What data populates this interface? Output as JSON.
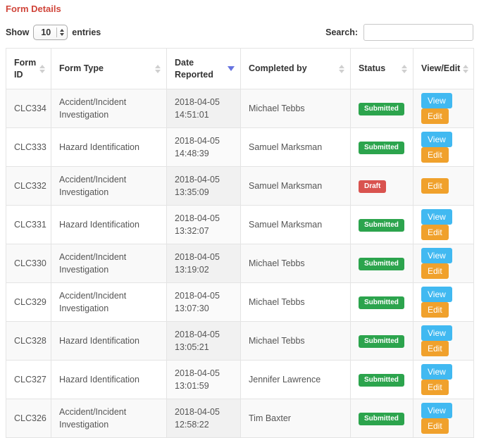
{
  "page": {
    "title": "Form Details"
  },
  "controls": {
    "show_label": "Show",
    "page_length": "10",
    "entries_label": "entries",
    "search_label": "Search:",
    "search_value": ""
  },
  "table": {
    "columns": [
      {
        "label": "Form ID",
        "sort": "none"
      },
      {
        "label": "Form Type",
        "sort": "none"
      },
      {
        "label": "Date Reported",
        "sort": "desc"
      },
      {
        "label": "Completed by",
        "sort": "none"
      },
      {
        "label": "Status",
        "sort": "none"
      },
      {
        "label": "View/Edit",
        "sort": "none"
      }
    ],
    "rows": [
      {
        "form_id": "CLC334",
        "form_type": "Accident/Incident Investigation",
        "date": "2018-04-05",
        "time": "14:51:01",
        "completed_by": "Michael Tebbs",
        "status": "Submitted",
        "actions": [
          "View",
          "Edit"
        ]
      },
      {
        "form_id": "CLC333",
        "form_type": "Hazard Identification",
        "date": "2018-04-05",
        "time": "14:48:39",
        "completed_by": "Samuel Marksman",
        "status": "Submitted",
        "actions": [
          "View",
          "Edit"
        ]
      },
      {
        "form_id": "CLC332",
        "form_type": "Accident/Incident Investigation",
        "date": "2018-04-05",
        "time": "13:35:09",
        "completed_by": "Samuel Marksman",
        "status": "Draft",
        "actions": [
          "Edit"
        ]
      },
      {
        "form_id": "CLC331",
        "form_type": "Hazard Identification",
        "date": "2018-04-05",
        "time": "13:32:07",
        "completed_by": "Samuel Marksman",
        "status": "Submitted",
        "actions": [
          "View",
          "Edit"
        ]
      },
      {
        "form_id": "CLC330",
        "form_type": "Accident/Incident Investigation",
        "date": "2018-04-05",
        "time": "13:19:02",
        "completed_by": "Michael Tebbs",
        "status": "Submitted",
        "actions": [
          "View",
          "Edit"
        ]
      },
      {
        "form_id": "CLC329",
        "form_type": "Accident/Incident Investigation",
        "date": "2018-04-05",
        "time": "13:07:30",
        "completed_by": "Michael Tebbs",
        "status": "Submitted",
        "actions": [
          "View",
          "Edit"
        ]
      },
      {
        "form_id": "CLC328",
        "form_type": "Hazard Identification",
        "date": "2018-04-05",
        "time": "13:05:21",
        "completed_by": "Michael Tebbs",
        "status": "Submitted",
        "actions": [
          "View",
          "Edit"
        ]
      },
      {
        "form_id": "CLC327",
        "form_type": "Hazard Identification",
        "date": "2018-04-05",
        "time": "13:01:59",
        "completed_by": "Jennifer Lawrence",
        "status": "Submitted",
        "actions": [
          "View",
          "Edit"
        ]
      },
      {
        "form_id": "CLC326",
        "form_type": "Accident/Incident Investigation",
        "date": "2018-04-05",
        "time": "12:58:22",
        "completed_by": "Tim Baxter",
        "status": "Submitted",
        "actions": [
          "View",
          "Edit"
        ]
      }
    ]
  },
  "colors": {
    "title": "#d0453a",
    "badge_submitted": "#2ca44d",
    "badge_draft": "#d9534f",
    "btn_view": "#41b9f1",
    "btn_edit": "#f0a12c",
    "sort_active": "#6673e0"
  }
}
